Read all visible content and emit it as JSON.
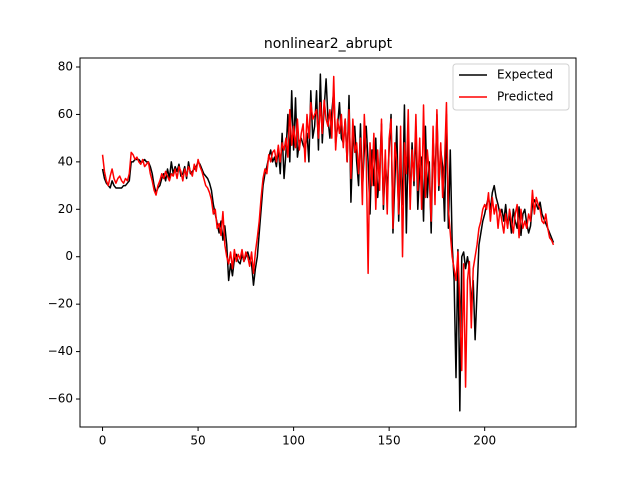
{
  "chart_data": {
    "type": "line",
    "title": "nonlinear2_abrupt",
    "x": [
      0,
      1,
      2,
      3,
      4,
      5,
      6,
      7,
      8,
      9,
      10,
      11,
      12,
      13,
      14,
      15,
      16,
      17,
      18,
      19,
      20,
      21,
      22,
      23,
      24,
      25,
      26,
      27,
      28,
      29,
      30,
      31,
      32,
      33,
      34,
      35,
      36,
      37,
      38,
      39,
      40,
      41,
      42,
      43,
      44,
      45,
      46,
      47,
      48,
      49,
      50,
      51,
      52,
      53,
      54,
      55,
      56,
      57,
      58,
      59,
      60,
      61,
      62,
      63,
      64,
      65,
      66,
      67,
      68,
      69,
      70,
      71,
      72,
      73,
      74,
      75,
      76,
      77,
      78,
      79,
      80,
      81,
      82,
      83,
      84,
      85,
      86,
      87,
      88,
      89,
      90,
      91,
      92,
      93,
      94,
      95,
      96,
      97,
      98,
      99,
      100,
      101,
      102,
      103,
      104,
      105,
      106,
      107,
      108,
      109,
      110,
      111,
      112,
      113,
      114,
      115,
      116,
      117,
      118,
      119,
      120,
      121,
      122,
      123,
      124,
      125,
      126,
      127,
      128,
      129,
      130,
      131,
      132,
      133,
      134,
      135,
      136,
      137,
      138,
      139,
      140,
      141,
      142,
      143,
      144,
      145,
      146,
      147,
      148,
      149,
      150,
      151,
      152,
      153,
      154,
      155,
      156,
      157,
      158,
      159,
      160,
      161,
      162,
      163,
      164,
      165,
      166,
      167,
      168,
      169,
      170,
      171,
      172,
      173,
      174,
      175,
      176,
      177,
      178,
      179,
      180,
      181,
      182,
      183,
      184,
      185,
      186,
      187,
      188,
      189,
      190,
      191,
      192,
      193,
      194,
      195,
      196,
      197,
      198,
      199,
      200,
      201,
      202,
      203,
      204,
      205,
      206,
      207,
      208,
      209,
      210,
      211,
      212,
      213,
      214,
      215,
      216,
      217,
      218,
      219,
      220,
      221,
      222,
      223,
      224,
      225,
      226,
      227,
      228,
      229,
      230,
      231,
      232,
      233,
      234,
      235,
      236
    ],
    "series": [
      {
        "name": "Expected",
        "color": "#000000",
        "values": [
          37,
          33,
          31,
          30,
          29,
          32,
          30,
          29,
          29,
          29,
          29,
          30,
          30,
          31,
          32,
          40,
          40,
          41,
          41,
          41,
          40,
          40,
          41,
          40,
          40,
          38,
          35,
          30,
          27,
          29,
          30,
          33,
          35,
          32,
          37,
          33,
          40,
          35,
          38,
          36,
          39,
          34,
          35,
          38,
          33,
          40,
          35,
          36,
          37,
          38,
          40,
          39,
          37,
          35,
          34,
          33,
          31,
          28,
          22,
          18,
          14,
          10,
          15,
          7,
          13,
          5,
          -10,
          -3,
          -8,
          -1,
          1,
          -2,
          -3,
          1,
          -2,
          0,
          2,
          -1,
          -3,
          -12,
          -5,
          0,
          10,
          20,
          30,
          35,
          38,
          42,
          45,
          40,
          42,
          38,
          46,
          35,
          52,
          33,
          44,
          60,
          40,
          70,
          45,
          67,
          42,
          48,
          50,
          47,
          45,
          52,
          40,
          70,
          50,
          55,
          70,
          45,
          77,
          48,
          63,
          75,
          58,
          50,
          61,
          70,
          48,
          55,
          65,
          50,
          48,
          58,
          40,
          68,
          23,
          48,
          55,
          40,
          30,
          56,
          28,
          45,
          55,
          40,
          18,
          45,
          30,
          50,
          25,
          35,
          56,
          20,
          40,
          28,
          45,
          60,
          10,
          32,
          55,
          15,
          40,
          22,
          64,
          10,
          50,
          25,
          48,
          30,
          55,
          20,
          37,
          42,
          15,
          55,
          25,
          40,
          10,
          50,
          30,
          60,
          28,
          45,
          38,
          15,
          60,
          12,
          45,
          5,
          -10,
          -51,
          3,
          -65,
          0,
          2,
          -5,
          0,
          -5,
          -20,
          -10,
          -35,
          -15,
          5,
          10,
          15,
          18,
          22,
          25,
          20,
          27,
          30,
          25,
          22,
          18,
          20,
          15,
          22,
          13,
          18,
          10,
          20,
          15,
          12,
          21,
          9,
          18,
          20,
          14,
          10,
          13,
          22,
          24,
          22,
          20,
          23,
          18,
          16,
          14,
          12,
          10,
          8,
          6
        ]
      },
      {
        "name": "Predicted",
        "color": "#ff0000",
        "values": [
          43,
          36,
          32,
          30,
          34,
          37,
          33,
          31,
          33,
          34,
          32,
          31,
          33,
          32,
          35,
          44,
          43,
          41,
          42,
          40,
          39,
          41,
          38,
          39,
          40,
          35,
          32,
          28,
          26,
          30,
          32,
          35,
          33,
          36,
          34,
          32,
          35,
          34,
          37,
          33,
          38,
          36,
          32,
          37,
          34,
          38,
          36,
          34,
          39,
          36,
          41,
          38,
          36,
          33,
          30,
          29,
          27,
          24,
          18,
          20,
          12,
          14,
          9,
          19,
          5,
          0,
          -3,
          2,
          -5,
          3,
          -2,
          1,
          -1,
          3,
          -2,
          2,
          0,
          -4,
          2,
          -7,
          2,
          8,
          15,
          25,
          33,
          37,
          35,
          43,
          40,
          44,
          45,
          40,
          47,
          40,
          48,
          45,
          50,
          42,
          62,
          47,
          55,
          46,
          58,
          45,
          52,
          56,
          40,
          60,
          50,
          65,
          58,
          60,
          62,
          50,
          65,
          52,
          66,
          58,
          55,
          62,
          50,
          76,
          45,
          58,
          52,
          60,
          46,
          58,
          40,
          62,
          33,
          58,
          44,
          48,
          35,
          50,
          22,
          60,
          42,
          -7,
          48,
          30,
          52,
          20,
          45,
          28,
          58,
          22,
          45,
          18,
          50,
          58,
          12,
          48,
          40,
          18,
          55,
          0,
          48,
          35,
          62,
          20,
          45,
          32,
          60,
          28,
          50,
          20,
          64,
          25,
          45,
          35,
          15,
          55,
          22,
          62,
          30,
          48,
          25,
          40,
          65,
          20,
          10,
          0,
          -5,
          -10,
          2,
          -20,
          -48,
          -3,
          -55,
          -10,
          -2,
          -30,
          -5,
          0,
          5,
          12,
          15,
          20,
          22,
          20,
          27,
          15,
          25,
          18,
          22,
          12,
          20,
          15,
          10,
          18,
          12,
          20,
          15,
          10,
          18,
          22,
          8,
          20,
          12,
          15,
          12,
          18,
          15,
          28,
          18,
          25,
          22,
          20,
          15,
          14,
          18,
          12,
          8,
          7,
          5
        ]
      }
    ],
    "xlim": [
      -11.8,
      247.8
    ],
    "xticks": [
      0,
      50,
      100,
      150,
      200
    ],
    "ylim": [
      -71.8,
      83.8
    ],
    "yticks": [
      {
        "value": -60,
        "label": "−60"
      },
      {
        "value": -40,
        "label": "−40"
      },
      {
        "value": -20,
        "label": "−20"
      },
      0,
      20,
      40,
      60,
      80
    ],
    "grid": false,
    "legend": "upper right"
  }
}
